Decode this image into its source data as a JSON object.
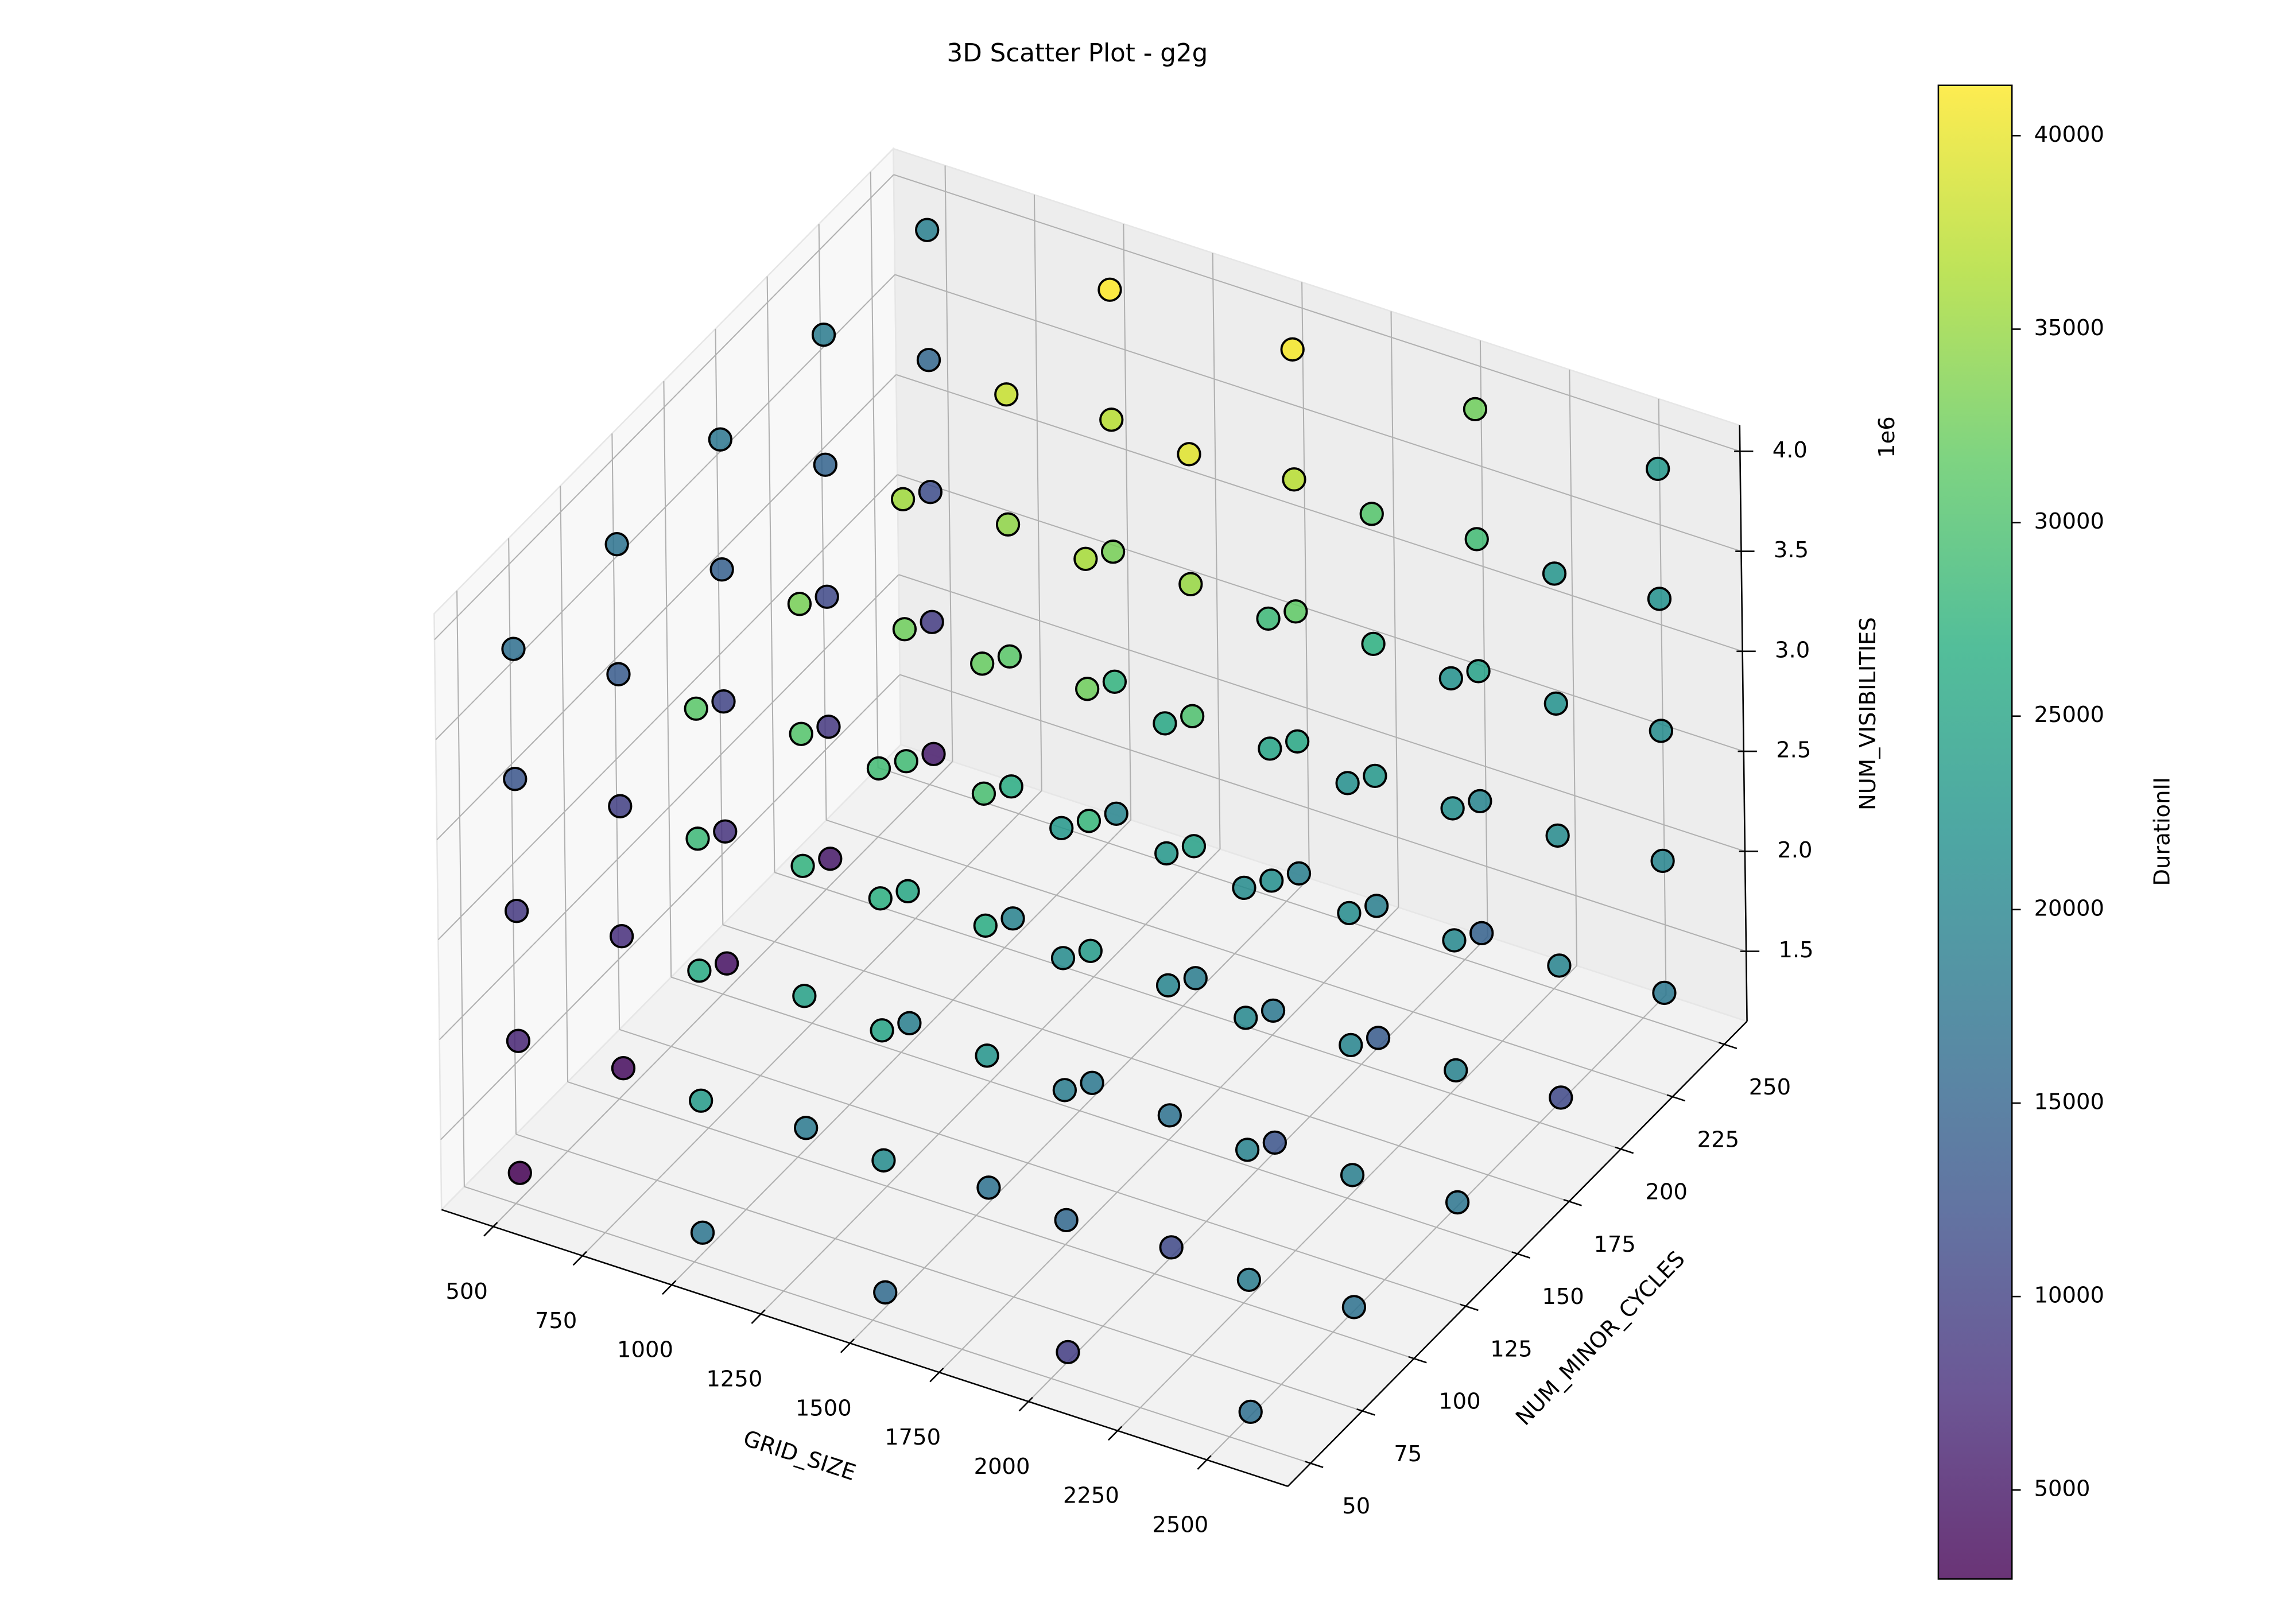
{
  "chart_data": {
    "type": "scatter3d",
    "title": "3D Scatter Plot - g2g",
    "xlabel": "GRID_SIZE",
    "ylabel": "NUM_MINOR_CYCLES",
    "zlabel": "NUM_VISIBILITIES",
    "z_offset_label": "1e6",
    "clabel": "DurationII",
    "colormap": "viridis",
    "grid": true,
    "xlim": [
      355,
      2727
    ],
    "ylim": [
      39,
      261
    ],
    "zlim": [
      1.15,
      4.13
    ],
    "clim": [
      2700,
      41300
    ],
    "xticks": [
      500,
      750,
      1000,
      1250,
      1500,
      1750,
      2000,
      2250,
      2500
    ],
    "yticks": [
      50,
      75,
      100,
      125,
      150,
      175,
      200,
      225,
      250
    ],
    "zticks": [
      1.5,
      {
        "value": 2,
        "label": "2.0"
      },
      2.5,
      {
        "value": 3,
        "label": "3.0"
      },
      3.5,
      {
        "value": 4,
        "label": "4.0"
      }
    ],
    "cticks": [
      5000,
      10000,
      15000,
      20000,
      25000,
      30000,
      35000,
      40000
    ],
    "x": [
      512,
      512,
      512,
      512,
      512,
      512,
      512,
      512,
      512,
      512,
      512,
      512,
      512,
      512,
      512,
      512,
      512,
      512,
      512,
      512,
      512,
      512,
      512,
      512,
      512,
      1024,
      1024,
      1024,
      1024,
      1024,
      1024,
      1024,
      1024,
      1024,
      1024,
      1024,
      1024,
      1024,
      1024,
      1024,
      1024,
      1024,
      1024,
      1024,
      1024,
      1024,
      1024,
      1024,
      1024,
      1024,
      1536,
      1536,
      1536,
      1536,
      1536,
      1536,
      1536,
      1536,
      1536,
      1536,
      1536,
      1536,
      1536,
      1536,
      1536,
      1536,
      1536,
      1536,
      1536,
      1536,
      1536,
      1536,
      1536,
      1536,
      1536,
      2048,
      2048,
      2048,
      2048,
      2048,
      2048,
      2048,
      2048,
      2048,
      2048,
      2048,
      2048,
      2048,
      2048,
      2048,
      2048,
      2048,
      2048,
      2048,
      2048,
      2048,
      2048,
      2048,
      2048,
      2048,
      2560,
      2560,
      2560,
      2560,
      2560,
      2560,
      2560,
      2560,
      2560,
      2560,
      2560,
      2560,
      2560,
      2560,
      2560,
      2560,
      2560,
      2560,
      2560,
      2560,
      2560,
      2560,
      2560,
      2560,
      2560
    ],
    "y": [
      50,
      50,
      50,
      50,
      50,
      100,
      100,
      100,
      100,
      100,
      150,
      150,
      150,
      150,
      150,
      200,
      200,
      200,
      200,
      200,
      250,
      250,
      250,
      250,
      250,
      50,
      50,
      50,
      50,
      50,
      100,
      100,
      100,
      100,
      100,
      150,
      150,
      150,
      150,
      150,
      200,
      200,
      200,
      200,
      200,
      250,
      250,
      250,
      250,
      250,
      50,
      50,
      50,
      50,
      50,
      100,
      100,
      100,
      100,
      100,
      150,
      150,
      150,
      150,
      150,
      200,
      200,
      200,
      200,
      200,
      250,
      250,
      250,
      250,
      250,
      50,
      50,
      50,
      50,
      50,
      100,
      100,
      100,
      100,
      100,
      150,
      150,
      150,
      150,
      150,
      200,
      200,
      200,
      200,
      200,
      250,
      250,
      250,
      250,
      250,
      50,
      50,
      50,
      50,
      50,
      100,
      100,
      100,
      100,
      100,
      150,
      150,
      150,
      150,
      150,
      200,
      200,
      200,
      200,
      200,
      250,
      250,
      250,
      250,
      250
    ],
    "z": [
      1.31,
      1.97,
      2.62,
      3.28,
      3.93,
      1.31,
      1.97,
      2.62,
      3.28,
      3.93,
      1.31,
      1.97,
      2.62,
      3.28,
      3.93,
      1.31,
      1.97,
      2.62,
      3.28,
      3.93,
      1.31,
      1.97,
      2.62,
      3.28,
      3.93,
      1.31,
      1.97,
      2.62,
      3.28,
      3.93,
      1.31,
      1.97,
      2.62,
      3.28,
      3.93,
      1.31,
      1.97,
      2.62,
      3.28,
      3.93,
      1.31,
      1.97,
      2.62,
      3.28,
      3.93,
      1.31,
      1.97,
      2.62,
      3.28,
      3.93,
      1.31,
      1.97,
      2.62,
      3.28,
      3.93,
      1.31,
      1.97,
      2.62,
      3.28,
      3.93,
      1.31,
      1.97,
      2.62,
      3.28,
      3.93,
      1.31,
      1.97,
      2.62,
      3.28,
      3.93,
      1.31,
      1.97,
      2.62,
      3.28,
      3.93,
      1.31,
      1.97,
      2.62,
      3.28,
      3.93,
      1.31,
      1.97,
      2.62,
      3.28,
      3.93,
      1.31,
      1.97,
      2.62,
      3.28,
      3.93,
      1.31,
      1.97,
      2.62,
      3.28,
      3.93,
      1.31,
      1.97,
      2.62,
      3.28,
      3.93,
      1.31,
      1.97,
      2.62,
      3.28,
      3.93,
      1.31,
      1.97,
      2.62,
      3.28,
      3.93,
      1.31,
      1.97,
      2.62,
      3.28,
      3.93,
      1.31,
      1.97,
      2.62,
      3.28,
      3.93,
      1.31,
      1.97,
      2.62,
      3.28,
      3.93
    ],
    "c": [
      2700,
      6500,
      8900,
      12800,
      16500,
      3900,
      7600,
      9800,
      13600,
      17200,
      4500,
      8200,
      10400,
      14300,
      17800,
      5100,
      8800,
      11000,
      14900,
      18400,
      5600,
      9300,
      11600,
      15400,
      19000,
      17500,
      23500,
      26000,
      28500,
      31000,
      18200,
      24500,
      27500,
      30500,
      33000,
      19000,
      25500,
      29000,
      32500,
      35500,
      19500,
      26500,
      31000,
      34500,
      38000,
      20000,
      27500,
      33000,
      37000,
      41300,
      16000,
      21000,
      25000,
      27000,
      29000,
      17000,
      22500,
      26500,
      29500,
      32000,
      18000,
      23500,
      28000,
      32500,
      36000,
      18500,
      24500,
      30000,
      35000,
      39500,
      19000,
      25500,
      31500,
      37000,
      40800,
      9500,
      15500,
      18500,
      21000,
      23000,
      11000,
      17000,
      20000,
      23000,
      25500,
      12500,
      18000,
      21500,
      25000,
      28500,
      13500,
      19000,
      23000,
      27000,
      30500,
      14500,
      20000,
      24500,
      29000,
      32500,
      16500,
      18500,
      19500,
      20500,
      21000,
      17000,
      19000,
      20000,
      21000,
      21500,
      17500,
      19500,
      20500,
      21500,
      22000,
      11000,
      19800,
      20800,
      21800,
      22500,
      18000,
      20000,
      21000,
      22000,
      22800
    ]
  }
}
